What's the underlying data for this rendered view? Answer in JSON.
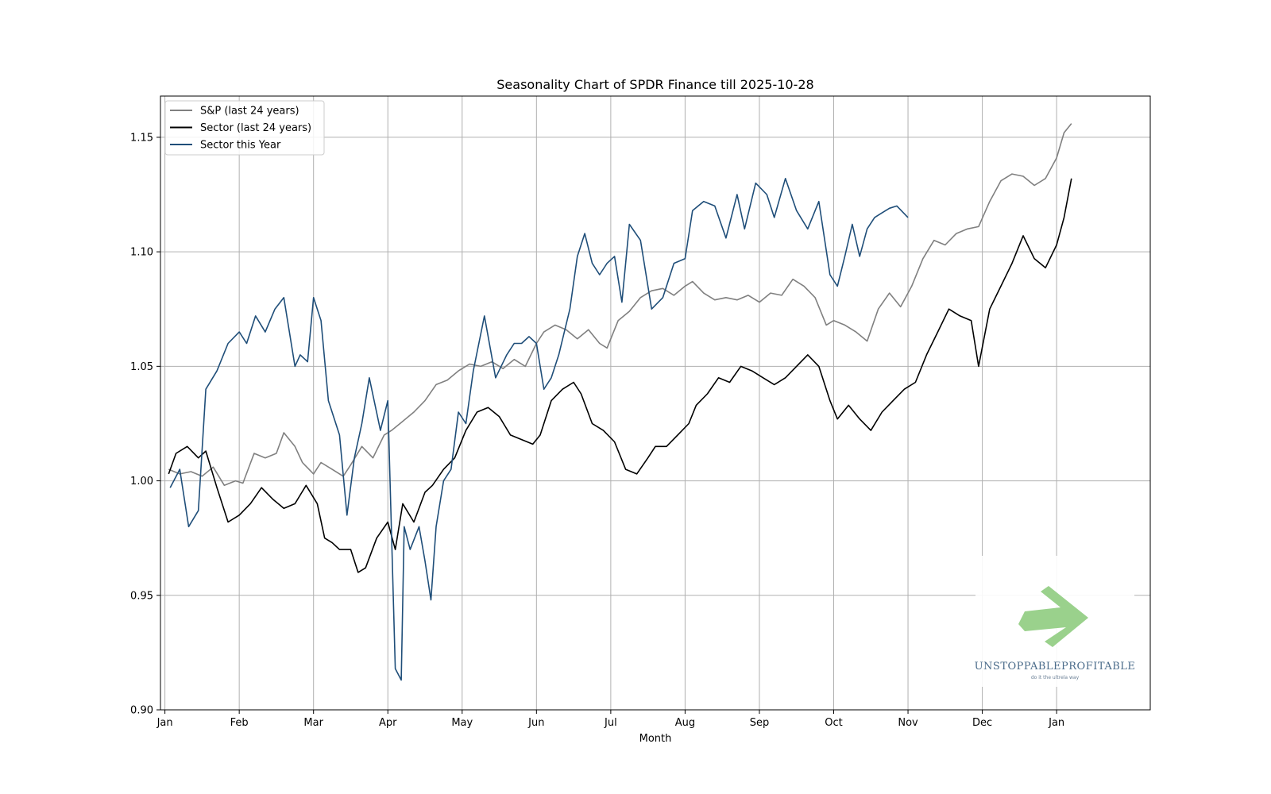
{
  "chart_data": {
    "type": "line",
    "title": "Seasonality Chart of SPDR Finance till 2025-10-28",
    "xlabel": "Month",
    "ylabel": "",
    "xlim": [
      -0.06,
      13.26
    ],
    "ylim": [
      0.9,
      1.168
    ],
    "grid": true,
    "legend": "top-left",
    "x_ticks": [
      0,
      1,
      2,
      3,
      4,
      5,
      6,
      7,
      8,
      9,
      10,
      11,
      12
    ],
    "categories": [
      "Jan",
      "Feb",
      "Mar",
      "Apr",
      "May",
      "Jun",
      "Jul",
      "Aug",
      "Sep",
      "Oct",
      "Nov",
      "Dec",
      "Jan"
    ],
    "y_ticks": [
      0.9,
      0.95,
      1.0,
      1.05,
      1.1,
      1.15
    ],
    "y_tick_labels": [
      "0.90",
      "0.95",
      "1.00",
      "1.05",
      "1.10",
      "1.15"
    ],
    "series": [
      {
        "name": "S&P (last 24 years)",
        "color": "#808080",
        "x": [
          0.05,
          0.2,
          0.35,
          0.5,
          0.65,
          0.8,
          0.95,
          1.05,
          1.2,
          1.35,
          1.5,
          1.6,
          1.75,
          1.85,
          2.0,
          2.1,
          2.25,
          2.4,
          2.5,
          2.65,
          2.8,
          2.95,
          3.05,
          3.2,
          3.35,
          3.5,
          3.65,
          3.8,
          3.95,
          4.1,
          4.25,
          4.4,
          4.55,
          4.7,
          4.85,
          5.0,
          5.1,
          5.25,
          5.4,
          5.55,
          5.7,
          5.85,
          5.95,
          6.1,
          6.25,
          6.4,
          6.55,
          6.7,
          6.85,
          7.0,
          7.1,
          7.25,
          7.4,
          7.55,
          7.7,
          7.85,
          8.0,
          8.15,
          8.3,
          8.45,
          8.6,
          8.75,
          8.9,
          9.0,
          9.15,
          9.3,
          9.45,
          9.6,
          9.75,
          9.9,
          10.05,
          10.2,
          10.35,
          10.5,
          10.65,
          10.8,
          10.95,
          11.1,
          11.25,
          11.4,
          11.55,
          11.7,
          11.85,
          12.0,
          12.1,
          12.2
        ],
        "values": [
          1.005,
          1.003,
          1.004,
          1.002,
          1.006,
          0.998,
          1.0,
          0.999,
          1.012,
          1.01,
          1.012,
          1.021,
          1.015,
          1.008,
          1.003,
          1.008,
          1.005,
          1.002,
          1.007,
          1.015,
          1.01,
          1.02,
          1.022,
          1.026,
          1.03,
          1.035,
          1.042,
          1.044,
          1.048,
          1.051,
          1.05,
          1.052,
          1.049,
          1.053,
          1.05,
          1.06,
          1.065,
          1.068,
          1.066,
          1.062,
          1.066,
          1.06,
          1.058,
          1.07,
          1.074,
          1.08,
          1.083,
          1.084,
          1.081,
          1.085,
          1.087,
          1.082,
          1.079,
          1.08,
          1.079,
          1.081,
          1.078,
          1.082,
          1.081,
          1.088,
          1.085,
          1.08,
          1.068,
          1.07,
          1.068,
          1.065,
          1.061,
          1.075,
          1.082,
          1.076,
          1.085,
          1.097,
          1.105,
          1.103,
          1.108,
          1.11,
          1.111,
          1.122,
          1.131,
          1.134,
          1.133,
          1.129,
          1.132,
          1.141,
          1.152,
          1.156
        ]
      },
      {
        "name": "Sector (last 24 years)",
        "color": "#000000",
        "x": [
          0.05,
          0.15,
          0.3,
          0.45,
          0.55,
          0.7,
          0.85,
          1.0,
          1.15,
          1.3,
          1.45,
          1.6,
          1.75,
          1.9,
          2.05,
          2.15,
          2.25,
          2.35,
          2.5,
          2.6,
          2.7,
          2.85,
          3.0,
          3.1,
          3.2,
          3.35,
          3.5,
          3.6,
          3.75,
          3.9,
          4.05,
          4.2,
          4.35,
          4.5,
          4.65,
          4.8,
          4.95,
          5.05,
          5.2,
          5.35,
          5.5,
          5.6,
          5.75,
          5.9,
          6.05,
          6.2,
          6.35,
          6.5,
          6.6,
          6.75,
          6.9,
          7.05,
          7.15,
          7.3,
          7.45,
          7.6,
          7.75,
          7.9,
          8.05,
          8.2,
          8.35,
          8.5,
          8.65,
          8.8,
          8.95,
          9.05,
          9.2,
          9.35,
          9.5,
          9.65,
          9.8,
          9.95,
          10.1,
          10.25,
          10.4,
          10.55,
          10.7,
          10.85,
          10.95,
          11.1,
          11.25,
          11.4,
          11.55,
          11.7,
          11.85,
          12.0,
          12.1,
          12.2
        ],
        "values": [
          1.003,
          1.012,
          1.015,
          1.01,
          1.013,
          0.997,
          0.982,
          0.985,
          0.99,
          0.997,
          0.992,
          0.988,
          0.99,
          0.998,
          0.99,
          0.975,
          0.973,
          0.97,
          0.97,
          0.96,
          0.962,
          0.975,
          0.982,
          0.97,
          0.99,
          0.982,
          0.995,
          0.998,
          1.005,
          1.01,
          1.022,
          1.03,
          1.032,
          1.028,
          1.02,
          1.018,
          1.016,
          1.02,
          1.035,
          1.04,
          1.043,
          1.038,
          1.025,
          1.022,
          1.017,
          1.005,
          1.003,
          1.01,
          1.015,
          1.015,
          1.02,
          1.025,
          1.033,
          1.038,
          1.045,
          1.043,
          1.05,
          1.048,
          1.045,
          1.042,
          1.045,
          1.05,
          1.055,
          1.05,
          1.035,
          1.027,
          1.033,
          1.027,
          1.022,
          1.03,
          1.035,
          1.04,
          1.043,
          1.055,
          1.065,
          1.075,
          1.072,
          1.07,
          1.05,
          1.075,
          1.085,
          1.095,
          1.107,
          1.097,
          1.093,
          1.103,
          1.115,
          1.132
        ]
      },
      {
        "name": "Sector this Year",
        "color": "#1f4e79",
        "x": [
          0.07,
          0.2,
          0.32,
          0.45,
          0.55,
          0.7,
          0.85,
          1.0,
          1.1,
          1.22,
          1.35,
          1.48,
          1.6,
          1.75,
          1.82,
          1.92,
          2.0,
          2.1,
          2.2,
          2.35,
          2.45,
          2.55,
          2.65,
          2.75,
          2.9,
          3.0,
          3.1,
          3.18,
          3.22,
          3.3,
          3.42,
          3.5,
          3.58,
          3.65,
          3.75,
          3.85,
          3.95,
          4.05,
          4.15,
          4.3,
          4.45,
          4.6,
          4.7,
          4.8,
          4.9,
          5.0,
          5.1,
          5.2,
          5.3,
          5.45,
          5.55,
          5.65,
          5.75,
          5.85,
          5.95,
          6.05,
          6.15,
          6.25,
          6.4,
          6.55,
          6.7,
          6.85,
          7.0,
          7.1,
          7.25,
          7.4,
          7.55,
          7.7,
          7.8,
          7.95,
          8.1,
          8.2,
          8.35,
          8.5,
          8.65,
          8.8,
          8.95,
          9.05,
          9.15,
          9.25,
          9.35,
          9.45,
          9.55,
          9.65,
          9.75,
          9.85,
          10.0
        ],
        "values": [
          0.997,
          1.005,
          0.98,
          0.987,
          1.04,
          1.048,
          1.06,
          1.065,
          1.06,
          1.072,
          1.065,
          1.075,
          1.08,
          1.05,
          1.055,
          1.052,
          1.08,
          1.07,
          1.035,
          1.02,
          0.985,
          1.01,
          1.025,
          1.045,
          1.022,
          1.035,
          0.918,
          0.913,
          0.98,
          0.97,
          0.98,
          0.965,
          0.948,
          0.98,
          1.0,
          1.005,
          1.03,
          1.025,
          1.048,
          1.072,
          1.045,
          1.055,
          1.06,
          1.06,
          1.063,
          1.06,
          1.04,
          1.045,
          1.055,
          1.075,
          1.098,
          1.108,
          1.095,
          1.09,
          1.095,
          1.098,
          1.078,
          1.112,
          1.105,
          1.075,
          1.08,
          1.095,
          1.097,
          1.118,
          1.122,
          1.12,
          1.106,
          1.125,
          1.11,
          1.13,
          1.125,
          1.115,
          1.132,
          1.118,
          1.11,
          1.122,
          1.09,
          1.085,
          1.098,
          1.112,
          1.098,
          1.11,
          1.115,
          1.117,
          1.119,
          1.12,
          1.115
        ]
      }
    ]
  },
  "watermark": {
    "brand": "UNSTOPPABLEPROFITABLE",
    "tagline": "do it the ultrela way",
    "arrow_color": "#8fcc80"
  }
}
